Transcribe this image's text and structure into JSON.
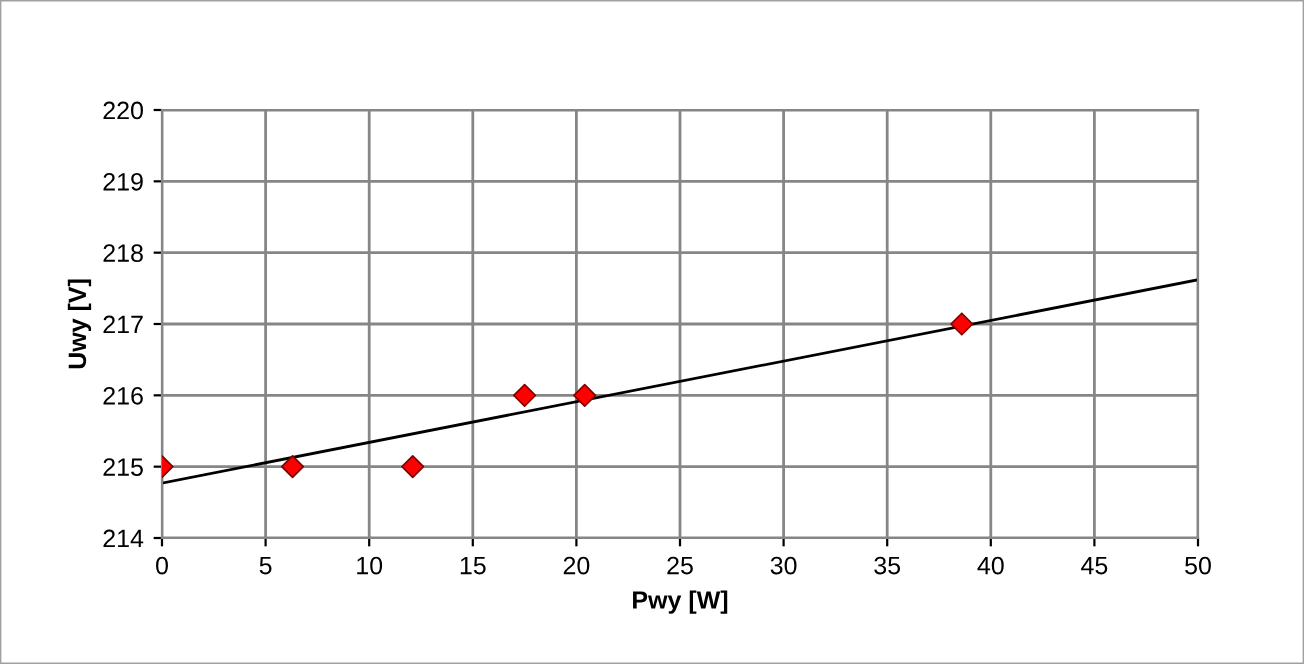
{
  "chart_data": {
    "type": "scatter",
    "xlabel": "Pwy [W]",
    "ylabel": "Uwy [V]",
    "series": [
      {
        "color": "#ff0000",
        "x": [
          0,
          6.3,
          12.1,
          17.5,
          20.4,
          38.6
        ],
        "values": [
          215,
          215,
          215,
          216,
          216,
          217
        ],
        "marker": "diamond"
      },
      {
        "type": "line",
        "color": "#000000",
        "x": [
          0,
          50
        ],
        "values": [
          214.77,
          217.62
        ],
        "marker": "none",
        "line_style": "solid"
      }
    ],
    "xlim": [
      0,
      50
    ],
    "xticks": [
      0,
      5,
      10,
      15,
      20,
      25,
      30,
      35,
      40,
      45,
      50
    ],
    "ylim": [
      214,
      220
    ],
    "yticks": [
      214,
      215,
      216,
      217,
      218,
      219,
      220
    ],
    "grid": true,
    "legend": false
  }
}
